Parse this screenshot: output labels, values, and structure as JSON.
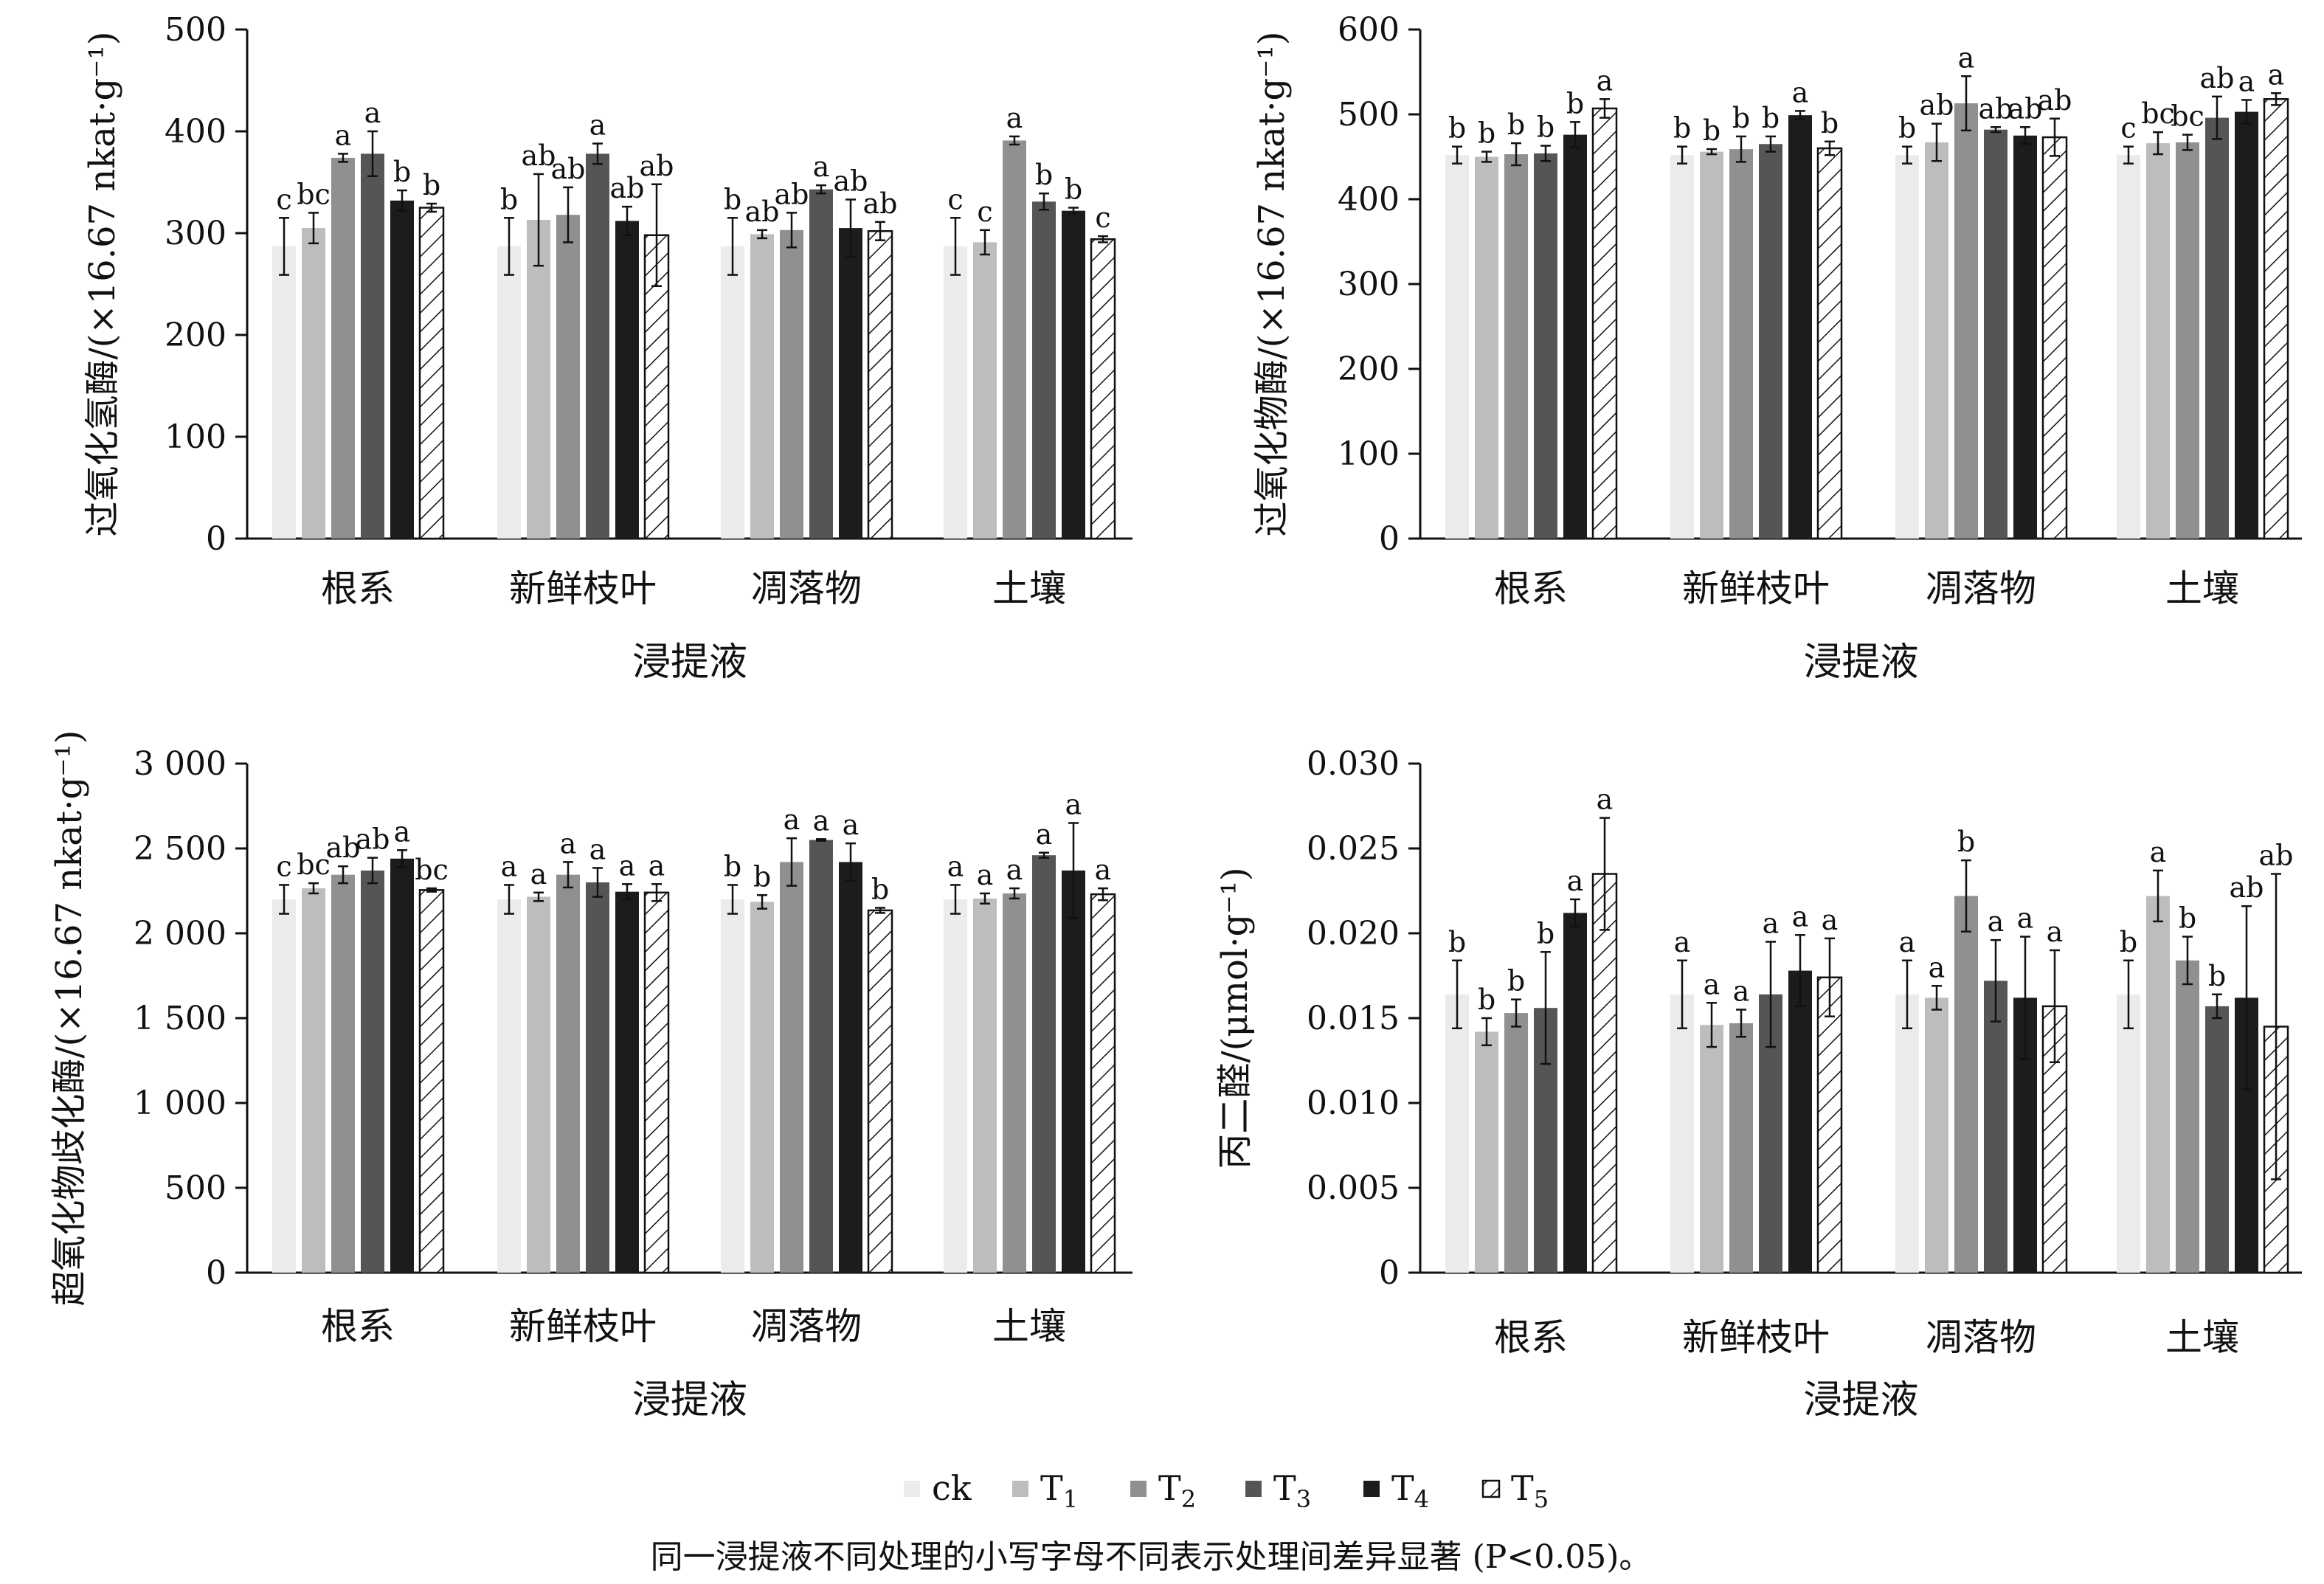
{
  "legend": [
    {
      "label": "ck",
      "sub": "",
      "fill": "#ebebeb",
      "hatch": false
    },
    {
      "label": "T",
      "sub": "1",
      "fill": "#bdbdbd",
      "hatch": false
    },
    {
      "label": "T",
      "sub": "2",
      "fill": "#909090",
      "hatch": false
    },
    {
      "label": "T",
      "sub": "3",
      "fill": "#555555",
      "hatch": false
    },
    {
      "label": "T",
      "sub": "4",
      "fill": "#1c1c1c",
      "hatch": false
    },
    {
      "label": "T",
      "sub": "5",
      "fill": "#ffffff",
      "hatch": true
    }
  ],
  "footnote": "同一浸提液不同处理的小写字母不同表示处理间差异显著 (P<0.05)。",
  "chart_data": [
    {
      "type": "bar",
      "title": "",
      "ylabel": "过氧化氢酶/(×16.67 nkat·g⁻¹)",
      "xlabel": "浸提液",
      "categories": [
        "根系",
        "新鲜枝叶",
        "凋落物",
        "土壤"
      ],
      "ylim": [
        0,
        500
      ],
      "yticks": [
        0,
        100,
        200,
        300,
        400,
        500
      ],
      "ytick_labels": [
        "0",
        "100",
        "200",
        "300",
        "400",
        "500"
      ],
      "series": [
        {
          "name": "ck",
          "values": [
            287,
            287,
            287,
            287
          ],
          "errors": [
            28,
            28,
            28,
            28
          ],
          "letters": [
            "c",
            "b",
            "b",
            "c"
          ]
        },
        {
          "name": "T1",
          "values": [
            305,
            313,
            299,
            291
          ],
          "errors": [
            15,
            45,
            4,
            12
          ],
          "letters": [
            "bc",
            "ab",
            "ab",
            "c"
          ]
        },
        {
          "name": "T2",
          "values": [
            374,
            318,
            303,
            391
          ],
          "errors": [
            4,
            27,
            17,
            4
          ],
          "letters": [
            "a",
            "ab",
            "ab",
            "a"
          ]
        },
        {
          "name": "T3",
          "values": [
            378,
            378,
            343,
            331
          ],
          "errors": [
            22,
            10,
            4,
            8
          ],
          "letters": [
            "a",
            "a",
            "a",
            "b"
          ]
        },
        {
          "name": "T4",
          "values": [
            332,
            312,
            305,
            322
          ],
          "errors": [
            10,
            14,
            28,
            3
          ],
          "letters": [
            "b",
            "ab",
            "ab",
            "b"
          ]
        },
        {
          "name": "T5",
          "values": [
            325,
            298,
            302,
            294
          ],
          "errors": [
            4,
            50,
            9,
            3
          ],
          "letters": [
            "b",
            "ab",
            "ab",
            "c"
          ]
        }
      ]
    },
    {
      "type": "bar",
      "title": "",
      "ylabel": "过氧化物酶/(×16.67 nkat·g⁻¹)",
      "xlabel": "浸提液",
      "categories": [
        "根系",
        "新鲜枝叶",
        "凋落物",
        "土壤"
      ],
      "ylim": [
        0,
        600
      ],
      "yticks": [
        0,
        100,
        200,
        300,
        400,
        500,
        600
      ],
      "ytick_labels": [
        "0",
        "100",
        "200",
        "300",
        "400",
        "500",
        "600"
      ],
      "series": [
        {
          "name": "ck",
          "values": [
            452,
            452,
            452,
            452
          ],
          "errors": [
            10,
            10,
            10,
            10
          ],
          "letters": [
            "b",
            "b",
            "b",
            "c"
          ]
        },
        {
          "name": "T1",
          "values": [
            450,
            456,
            467,
            466
          ],
          "errors": [
            6,
            3,
            22,
            13
          ],
          "letters": [
            "b",
            "b",
            "ab",
            "bc"
          ]
        },
        {
          "name": "T2",
          "values": [
            453,
            459,
            513,
            467
          ],
          "errors": [
            13,
            15,
            32,
            9
          ],
          "letters": [
            "b",
            "b",
            "a",
            "bc"
          ]
        },
        {
          "name": "T3",
          "values": [
            454,
            465,
            482,
            496
          ],
          "errors": [
            9,
            9,
            3,
            25
          ],
          "letters": [
            "b",
            "b",
            "ab",
            "ab"
          ]
        },
        {
          "name": "T4",
          "values": [
            476,
            499,
            475,
            503
          ],
          "errors": [
            15,
            5,
            10,
            14
          ],
          "letters": [
            "b",
            "a",
            "ab",
            "a"
          ]
        },
        {
          "name": "T5",
          "values": [
            507,
            460,
            473,
            518
          ],
          "errors": [
            11,
            8,
            22,
            7
          ],
          "letters": [
            "a",
            "b",
            "ab",
            "a"
          ]
        }
      ]
    },
    {
      "type": "bar",
      "title": "",
      "ylabel": "超氧化物歧化酶/(×16.67 nkat·g⁻¹)",
      "xlabel": "浸提液",
      "categories": [
        "根系",
        "新鲜枝叶",
        "凋落物",
        "土壤"
      ],
      "ylim": [
        0,
        3000
      ],
      "yticks": [
        0,
        500,
        1000,
        1500,
        2000,
        2500,
        3000
      ],
      "ytick_labels": [
        "0",
        "500",
        "1 000",
        "1 500",
        "2 000",
        "2 500",
        "3 000"
      ],
      "series": [
        {
          "name": "ck",
          "values": [
            2200,
            2200,
            2200,
            2200
          ],
          "errors": [
            85,
            85,
            85,
            85
          ],
          "letters": [
            "c",
            "a",
            "b",
            "a"
          ]
        },
        {
          "name": "T1",
          "values": [
            2265,
            2215,
            2185,
            2205
          ],
          "errors": [
            30,
            25,
            40,
            30
          ],
          "letters": [
            "bc",
            "a",
            "b",
            "a"
          ]
        },
        {
          "name": "T2",
          "values": [
            2345,
            2345,
            2420,
            2235
          ],
          "errors": [
            50,
            75,
            140,
            30
          ],
          "letters": [
            "ab",
            "a",
            "a",
            "a"
          ]
        },
        {
          "name": "T3",
          "values": [
            2370,
            2300,
            2550,
            2460
          ],
          "errors": [
            75,
            85,
            5,
            15
          ],
          "letters": [
            "ab",
            "a",
            "a",
            "a"
          ]
        },
        {
          "name": "T4",
          "values": [
            2440,
            2245,
            2420,
            2370
          ],
          "errors": [
            50,
            45,
            110,
            280
          ],
          "letters": [
            "a",
            "a",
            "a",
            "a"
          ]
        },
        {
          "name": "T5",
          "values": [
            2255,
            2240,
            2135,
            2230
          ],
          "errors": [
            10,
            50,
            15,
            35
          ],
          "letters": [
            "bc",
            "a",
            "b",
            "a"
          ]
        }
      ]
    },
    {
      "type": "bar",
      "title": "",
      "ylabel": "丙二醛/(μmol·g⁻¹)",
      "xlabel": "浸提液",
      "categories": [
        "根系",
        "新鲜枝叶",
        "凋落物",
        "土壤"
      ],
      "ylim": [
        0,
        0.03
      ],
      "yticks": [
        0,
        0.005,
        0.01,
        0.015,
        0.02,
        0.025,
        0.03
      ],
      "ytick_labels": [
        "0",
        "0.005",
        "0.010",
        "0.015",
        "0.020",
        "0.025",
        "0.030"
      ],
      "series": [
        {
          "name": "ck",
          "values": [
            0.0164,
            0.0164,
            0.0164,
            0.0164
          ],
          "errors": [
            0.002,
            0.002,
            0.002,
            0.002
          ],
          "letters": [
            "b",
            "a",
            "a",
            "b"
          ]
        },
        {
          "name": "T1",
          "values": [
            0.0142,
            0.0146,
            0.0162,
            0.0222
          ],
          "errors": [
            0.0008,
            0.0013,
            0.0007,
            0.0015
          ],
          "letters": [
            "b",
            "a",
            "a",
            "a"
          ]
        },
        {
          "name": "T2",
          "values": [
            0.0153,
            0.0147,
            0.0222,
            0.0184
          ],
          "errors": [
            0.0008,
            0.0008,
            0.0021,
            0.0014
          ],
          "letters": [
            "b",
            "a",
            "b",
            "b"
          ]
        },
        {
          "name": "T3",
          "values": [
            0.0156,
            0.0164,
            0.0172,
            0.0157
          ],
          "errors": [
            0.0033,
            0.0031,
            0.0024,
            0.0007
          ],
          "letters": [
            "b",
            "a",
            "a",
            "b"
          ]
        },
        {
          "name": "T4",
          "values": [
            0.0212,
            0.0178,
            0.0162,
            0.0162
          ],
          "errors": [
            0.0008,
            0.0021,
            0.0036,
            0.0054
          ],
          "letters": [
            "a",
            "a",
            "a",
            "ab"
          ]
        },
        {
          "name": "T5",
          "values": [
            0.0235,
            0.0174,
            0.0157,
            0.0145
          ],
          "errors": [
            0.0033,
            0.0023,
            0.0033,
            0.009
          ],
          "letters": [
            "a",
            "a",
            "a",
            "ab"
          ]
        }
      ]
    }
  ]
}
